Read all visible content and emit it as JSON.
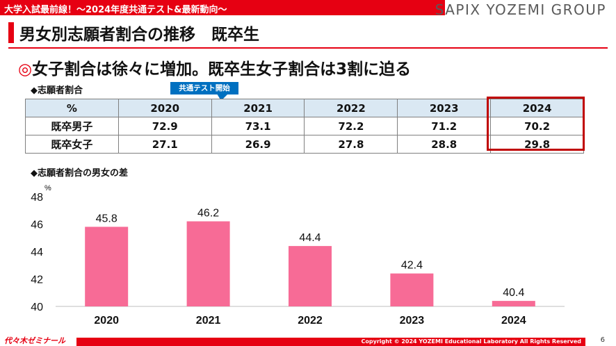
{
  "header": {
    "series_title": "大学入試最前線！～2024年度共通テスト&最新動向～",
    "brand": "SAPIX YOZEMI GROUP"
  },
  "slide": {
    "title": "男女別志願者割合の推移　既卒生",
    "headline_mark": "◎",
    "headline": "女子割合は徐々に増加。既卒生女子割合は3割に迫る"
  },
  "table_section": {
    "heading": "◆志願者割合",
    "callout": "共通テスト開始",
    "header": [
      "%",
      "2020",
      "2021",
      "2022",
      "2023",
      "2024"
    ],
    "rows": [
      [
        "既卒男子",
        "72.9",
        "73.1",
        "72.2",
        "71.2",
        "70.2"
      ],
      [
        "既卒女子",
        "27.1",
        "26.9",
        "27.8",
        "28.8",
        "29.8"
      ]
    ],
    "highlight_color": "#c00000"
  },
  "chart_section": {
    "heading": "◆志願者割合の男女の差"
  },
  "chart_data": {
    "type": "bar",
    "categories": [
      "2020",
      "2021",
      "2022",
      "2023",
      "2024"
    ],
    "values": [
      45.8,
      46.2,
      44.4,
      42.4,
      40.4
    ],
    "data_labels": [
      "45.8",
      "46.2",
      "44.4",
      "42.4",
      "40.4"
    ],
    "ylabel": "%",
    "ylim": [
      40,
      48
    ],
    "yticks": [
      40,
      42,
      44,
      46,
      48
    ],
    "grid": false,
    "bar_color": "#f76b96"
  },
  "footer": {
    "logo": "代々木ゼミナール",
    "copyright": "Copyright © 2024 YOZEMI Educational Laboratory All Rights Reserved",
    "page": "6"
  },
  "colors": {
    "accent": "#e60012",
    "table_header": "#dae8f3",
    "callout": "#0070c0"
  }
}
